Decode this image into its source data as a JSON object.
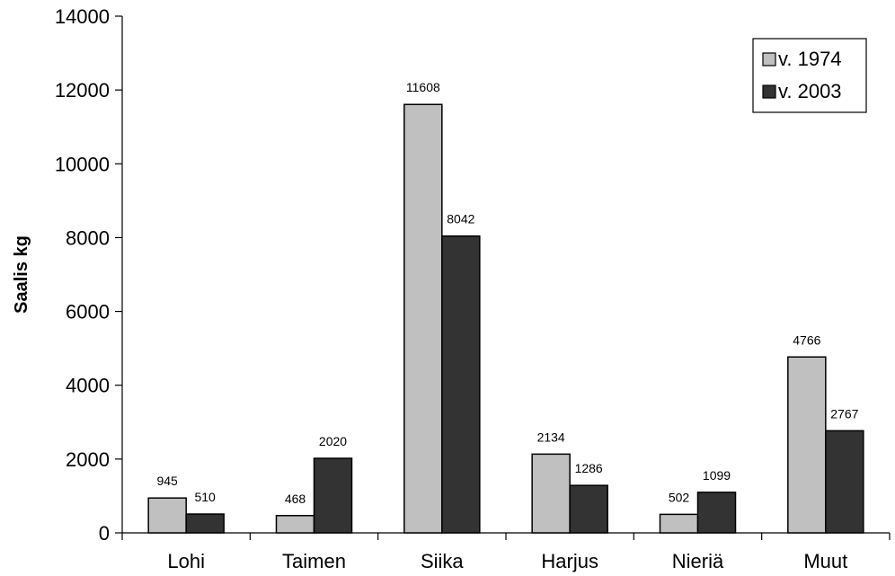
{
  "chart_data": {
    "type": "bar",
    "categories": [
      "Lohi",
      "Taimen",
      "Siika",
      "Harjus",
      "Nieriä",
      "Muut"
    ],
    "series": [
      {
        "name": "v. 1974",
        "color": "#c0c0c0",
        "values": [
          945,
          468,
          11608,
          2134,
          502,
          4766
        ]
      },
      {
        "name": "v. 2003",
        "color": "#333333",
        "values": [
          510,
          2020,
          8042,
          1286,
          1099,
          2767
        ]
      }
    ],
    "data_labels": [
      [
        "945",
        "468",
        "11608",
        "2134",
        "502",
        "4766"
      ],
      [
        "510",
        "2020",
        "8042",
        "1286",
        "1099",
        "2767"
      ]
    ],
    "title": "",
    "xlabel": "",
    "ylabel": "Saalis kg",
    "ylim": [
      0,
      14000
    ],
    "yticks": [
      0,
      2000,
      4000,
      6000,
      8000,
      10000,
      12000,
      14000
    ],
    "ytick_labels": [
      "0",
      "2000",
      "4000",
      "6000",
      "8000",
      "10000",
      "12000",
      "14000"
    ],
    "grid": false,
    "legend_position": "top-right"
  }
}
